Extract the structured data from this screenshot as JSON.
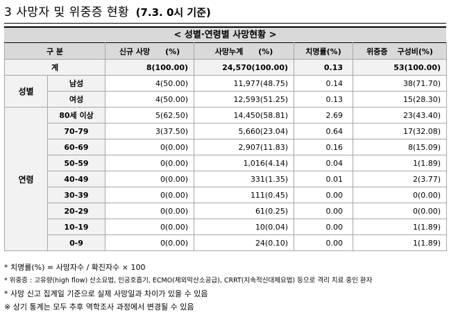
{
  "heading": {
    "main": "3  사망자 및 위중증 현황",
    "sub": "(7.3. 0시 기준)"
  },
  "table_title": "< 성별·연령별 사망현황 >",
  "columns": {
    "gubun": "구 분",
    "new_deaths": "신규 사망",
    "new_deaths_unit": "(%)",
    "cum_deaths": "사망누계",
    "cum_deaths_unit": "(%)",
    "fatality": "치명률(%)",
    "critical": "위중증",
    "critical_ratio": "구성비(%)"
  },
  "total": {
    "label": "계",
    "new": "8(100.00)",
    "cum": "24,570(100.00)",
    "rate": "0.13",
    "critical": "53(100.00)"
  },
  "sex": {
    "group": "성별",
    "rows": [
      {
        "label": "남성",
        "new": "4(50.00)",
        "cum": "11,977(48.75)",
        "rate": "0.14",
        "critical": "38(71.70)"
      },
      {
        "label": "여성",
        "new": "4(50.00)",
        "cum": "12,593(51.25)",
        "rate": "0.13",
        "critical": "15(28.30)"
      }
    ]
  },
  "age": {
    "group": "연령",
    "rows": [
      {
        "label": "80세 이상",
        "new": "5(62.50)",
        "cum": "14,450(58.81)",
        "rate": "2.69",
        "critical": "23(43.40)"
      },
      {
        "label": "70-79",
        "new": "3(37.50)",
        "cum": "5,660(23.04)",
        "rate": "0.64",
        "critical": "17(32.08)"
      },
      {
        "label": "60-69",
        "new": "0(0.00)",
        "cum": "2,907(11.83)",
        "rate": "0.16",
        "critical": "8(15.09)"
      },
      {
        "label": "50-59",
        "new": "0(0.00)",
        "cum": "1,016(4.14)",
        "rate": "0.04",
        "critical": "1(1.89)"
      },
      {
        "label": "40-49",
        "new": "0(0.00)",
        "cum": "331(1.35)",
        "rate": "0.01",
        "critical": "2(3.77)"
      },
      {
        "label": "30-39",
        "new": "0(0.00)",
        "cum": "111(0.45)",
        "rate": "0.00",
        "critical": "0(0.00)"
      },
      {
        "label": "20-29",
        "new": "0(0.00)",
        "cum": "61(0.25)",
        "rate": "0.00",
        "critical": "0(0.00)"
      },
      {
        "label": "10-19",
        "new": "0(0.00)",
        "cum": "10(0.04)",
        "rate": "0.00",
        "critical": "1(1.89)"
      },
      {
        "label": "0-9",
        "new": "0(0.00)",
        "cum": "24(0.10)",
        "rate": "0.00",
        "critical": "1(1.89)"
      }
    ]
  },
  "notes": [
    "* 치명률(%) = 사망자수 / 확진자수 × 100",
    "* 위중증 : 고유량(high flow) 산소요법, 인공호흡기, ECMO(체외막산소공급), CRRT(지속적신대체요법) 등으로 격리 치료 중인 환자",
    "* 사망 신고 집계일 기준으로 실제 사망일과 차이가 있을 수 있음",
    "※ 상기 통계는 모두 추후 역학조사 과정에서 변경될 수 있음"
  ],
  "colors": {
    "header_bg": "#d9d9d9",
    "label_bg": "#f2f2f2",
    "grid": "#a6a6a6"
  }
}
